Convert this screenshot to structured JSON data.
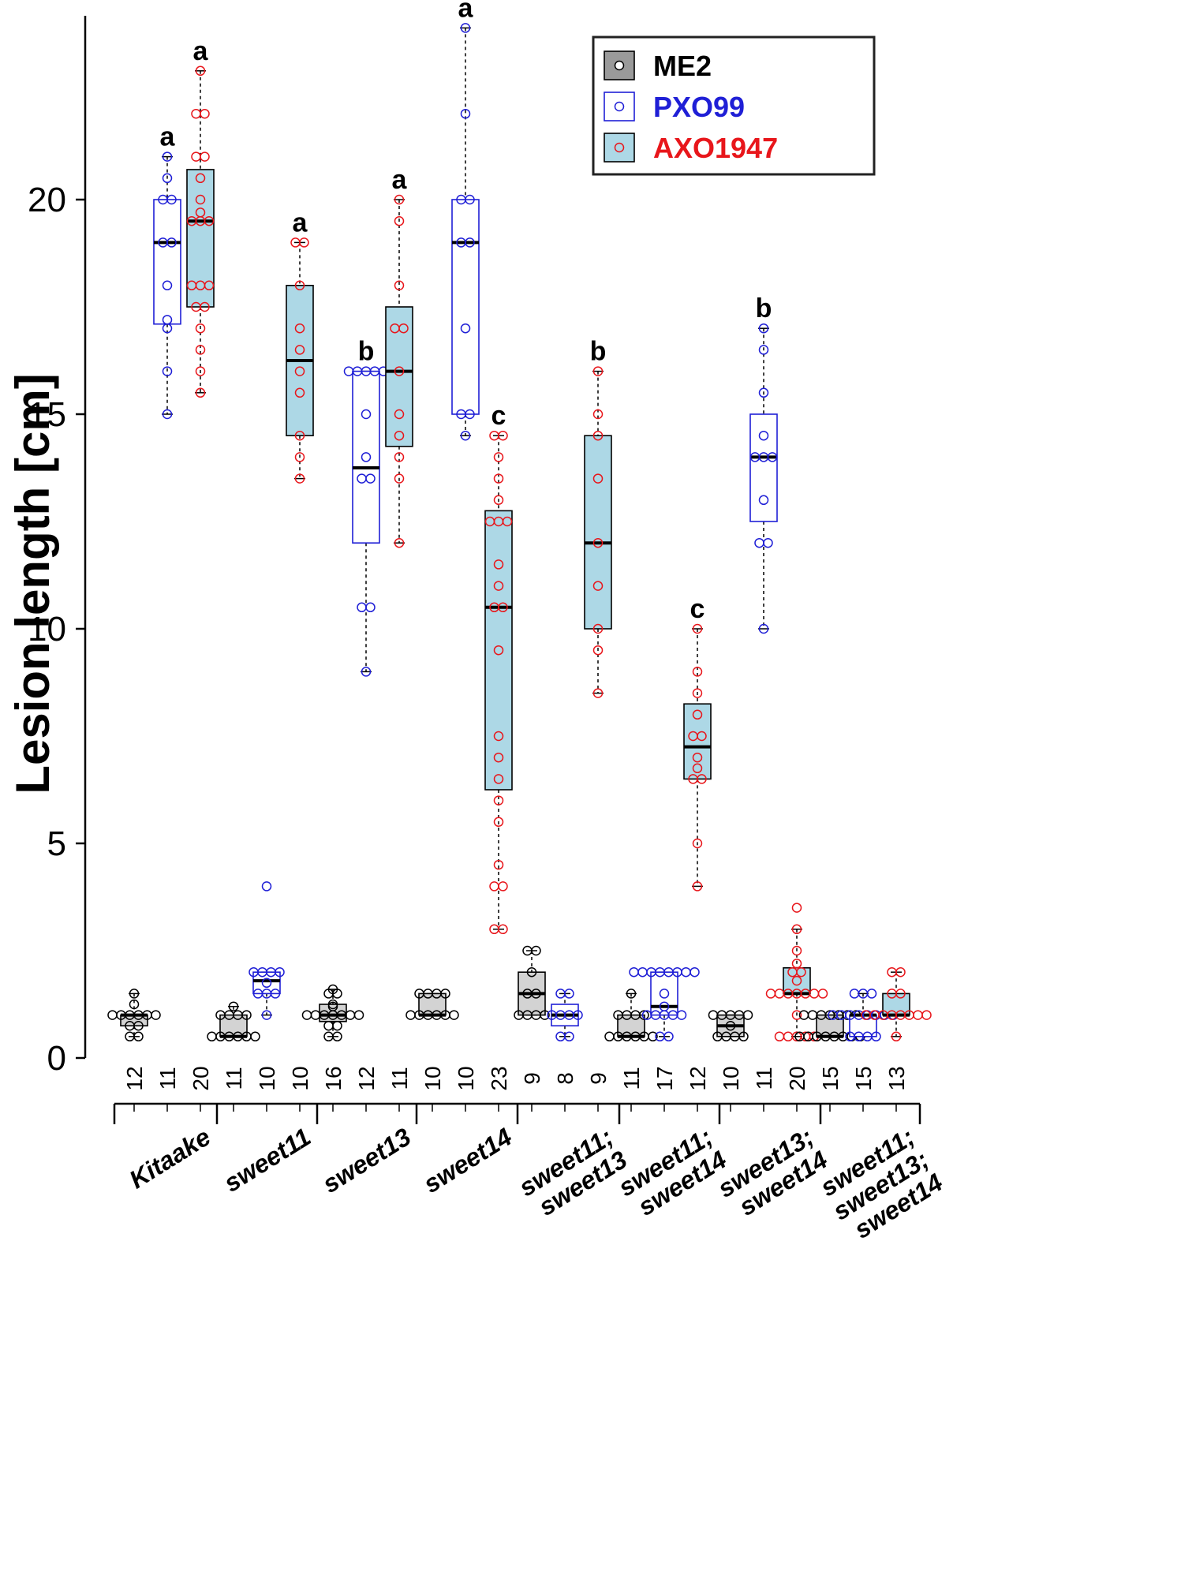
{
  "chart_data": {
    "type": "boxplot",
    "ylabel": "Lesion length [cm]",
    "ylim": [
      0,
      24.5
    ],
    "yticks": [
      0,
      5,
      10,
      15,
      20
    ],
    "legend": {
      "placement": "top-right",
      "entries": [
        {
          "name": "ME2",
          "color": "#000000",
          "fill": "#d3d3d3"
        },
        {
          "name": "PXO99",
          "color": "#1f1fd6",
          "fill": "#ffffff"
        },
        {
          "name": "AXO1947",
          "color": "#e8161b",
          "fill": "#add8e6"
        }
      ]
    },
    "groups": [
      {
        "label": "Kitaake",
        "label_lines": [
          "Kitaake"
        ]
      },
      {
        "label": "sweet11",
        "label_lines": [
          "sweet11"
        ]
      },
      {
        "label": "sweet13",
        "label_lines": [
          "sweet13"
        ]
      },
      {
        "label": "sweet14",
        "label_lines": [
          "sweet14"
        ]
      },
      {
        "label": "sweet11; sweet13",
        "label_lines": [
          "sweet11;",
          "sweet13"
        ]
      },
      {
        "label": "sweet11; sweet14",
        "label_lines": [
          "sweet11;",
          "sweet14"
        ]
      },
      {
        "label": "sweet13; sweet14",
        "label_lines": [
          "sweet13;",
          "sweet14"
        ]
      },
      {
        "label": "sweet11; sweet13; sweet14",
        "label_lines": [
          "sweet11;",
          "sweet13;",
          "sweet14"
        ]
      }
    ],
    "boxes": [
      {
        "group": 0,
        "strain": "ME2",
        "n": "12",
        "q1": 0.75,
        "median": 1.0,
        "q3": 1.0,
        "whisker_low": 0.5,
        "whisker_high": 1.5,
        "points": [
          0.5,
          0.5,
          0.75,
          0.75,
          1,
          1,
          1,
          1,
          1,
          1,
          1.25,
          1.5
        ],
        "letter": ""
      },
      {
        "group": 0,
        "strain": "PXO99",
        "n": "11",
        "q1": 17.1,
        "median": 19.0,
        "q3": 20.0,
        "whisker_low": 15.0,
        "whisker_high": 21.0,
        "points": [
          15,
          16,
          17,
          17.2,
          18,
          19,
          19,
          20,
          20,
          20.5,
          21
        ],
        "letter": "a"
      },
      {
        "group": 0,
        "strain": "AXO1947",
        "n": "20",
        "q1": 17.5,
        "median": 19.5,
        "q3": 20.7,
        "whisker_low": 15.5,
        "whisker_high": 23.0,
        "points": [
          15.5,
          16,
          16.5,
          17,
          17.5,
          17.5,
          18,
          18,
          18,
          19.5,
          19.5,
          19.5,
          19.7,
          20,
          20.5,
          21,
          21,
          22,
          22,
          23
        ],
        "letter": "a"
      },
      {
        "group": 1,
        "strain": "ME2",
        "n": "11",
        "q1": 0.5,
        "median": 0.5,
        "q3": 1.0,
        "whisker_low": 0.5,
        "whisker_high": 1.2,
        "points": [
          0.5,
          0.5,
          0.5,
          0.5,
          0.5,
          0.5,
          1,
          1,
          1,
          1,
          1.2
        ],
        "letter": ""
      },
      {
        "group": 1,
        "strain": "PXO99",
        "n": "10",
        "q1": 1.5,
        "median": 1.8,
        "q3": 2.0,
        "whisker_low": 1.0,
        "whisker_high": 2.0,
        "points": [
          1,
          1.5,
          1.5,
          1.5,
          1.75,
          2,
          2,
          2,
          2,
          4
        ],
        "letter": ""
      },
      {
        "group": 1,
        "strain": "AXO1947",
        "n": "10",
        "q1": 14.5,
        "median": 16.25,
        "q3": 18.0,
        "whisker_low": 13.5,
        "whisker_high": 19.0,
        "points": [
          13.5,
          14,
          14.5,
          15.5,
          16,
          16.5,
          17,
          18,
          19,
          19
        ],
        "letter": "a"
      },
      {
        "group": 2,
        "strain": "ME2",
        "n": "16",
        "q1": 0.85,
        "median": 1.0,
        "q3": 1.25,
        "whisker_low": 0.5,
        "whisker_high": 1.6,
        "points": [
          0.5,
          0.5,
          0.75,
          0.75,
          1,
          1,
          1,
          1,
          1,
          1,
          1,
          1.2,
          1.25,
          1.5,
          1.5,
          1.6
        ],
        "letter": ""
      },
      {
        "group": 2,
        "strain": "PXO99",
        "n": "12",
        "q1": 12.0,
        "median": 13.75,
        "q3": 16.0,
        "whisker_low": 9.0,
        "whisker_high": 16.0,
        "points": [
          9,
          10.5,
          10.5,
          13.5,
          13.5,
          14,
          15,
          16,
          16,
          16,
          16,
          16
        ],
        "letter": "b"
      },
      {
        "group": 2,
        "strain": "AXO1947",
        "n": "11",
        "q1": 14.25,
        "median": 16.0,
        "q3": 17.5,
        "whisker_low": 12.0,
        "whisker_high": 20.0,
        "points": [
          12,
          13.5,
          14,
          14.5,
          15,
          16,
          17,
          17,
          18,
          19.5,
          20
        ],
        "letter": "a"
      },
      {
        "group": 3,
        "strain": "ME2",
        "n": "10",
        "q1": 1.0,
        "median": 1.0,
        "q3": 1.5,
        "whisker_low": 1.0,
        "whisker_high": 1.5,
        "points": [
          1,
          1,
          1,
          1,
          1,
          1,
          1.5,
          1.5,
          1.5,
          1.5
        ],
        "letter": ""
      },
      {
        "group": 3,
        "strain": "PXO99",
        "n": "10",
        "q1": 15.0,
        "median": 19.0,
        "q3": 20.0,
        "whisker_low": 14.5,
        "whisker_high": 24.0,
        "points": [
          14.5,
          15,
          15,
          17,
          19,
          19,
          20,
          20,
          22,
          24
        ],
        "letter": "a"
      },
      {
        "group": 3,
        "strain": "AXO1947",
        "n": "23",
        "q1": 6.25,
        "median": 10.5,
        "q3": 12.75,
        "whisker_low": 3.0,
        "whisker_high": 14.5,
        "points": [
          3,
          3,
          4,
          4,
          4.5,
          5.5,
          6,
          6.5,
          7,
          7.5,
          9.5,
          10.5,
          10.5,
          11,
          11.5,
          12.5,
          12.5,
          12.5,
          13,
          13.5,
          14,
          14.5,
          14.5
        ],
        "letter": "c"
      },
      {
        "group": 4,
        "strain": "ME2",
        "n": "9",
        "q1": 1.0,
        "median": 1.5,
        "q3": 2.0,
        "whisker_low": 1.0,
        "whisker_high": 2.5,
        "points": [
          1,
          1,
          1,
          1,
          1.5,
          1.5,
          2,
          2.5,
          2.5
        ],
        "letter": ""
      },
      {
        "group": 4,
        "strain": "PXO99",
        "n": "8",
        "q1": 0.75,
        "median": 1.0,
        "q3": 1.25,
        "whisker_low": 0.5,
        "whisker_high": 1.5,
        "points": [
          0.5,
          0.5,
          1,
          1,
          1,
          1,
          1.5,
          1.5
        ],
        "letter": ""
      },
      {
        "group": 4,
        "strain": "AXO1947",
        "n": "9",
        "q1": 10.0,
        "median": 12.0,
        "q3": 14.5,
        "whisker_low": 8.5,
        "whisker_high": 16.0,
        "points": [
          8.5,
          9.5,
          10,
          11,
          12,
          13.5,
          14.5,
          15,
          16
        ],
        "letter": "b"
      },
      {
        "group": 5,
        "strain": "ME2",
        "n": "11",
        "q1": 0.5,
        "median": 0.5,
        "q3": 1.0,
        "whisker_low": 0.5,
        "whisker_high": 1.5,
        "points": [
          0.5,
          0.5,
          0.5,
          0.5,
          0.5,
          0.5,
          1,
          1,
          1,
          1,
          1.5
        ],
        "letter": ""
      },
      {
        "group": 5,
        "strain": "PXO99",
        "n": "17",
        "q1": 1.0,
        "median": 1.2,
        "q3": 2.0,
        "whisker_low": 0.5,
        "whisker_high": 2.0,
        "points": [
          0.5,
          0.5,
          1,
          1,
          1,
          1,
          1,
          1.2,
          1.5,
          2,
          2,
          2,
          2,
          2,
          2,
          2,
          2
        ],
        "letter": ""
      },
      {
        "group": 5,
        "strain": "AXO1947",
        "n": "12",
        "q1": 6.5,
        "median": 7.25,
        "q3": 8.25,
        "whisker_low": 4.0,
        "whisker_high": 10.0,
        "points": [
          4,
          5,
          6.5,
          6.5,
          6.75,
          7,
          7.5,
          7.5,
          8,
          8.5,
          9,
          10
        ],
        "letter": "c"
      },
      {
        "group": 6,
        "strain": "ME2",
        "n": "10",
        "q1": 0.5,
        "median": 0.75,
        "q3": 1.0,
        "whisker_low": 0.5,
        "whisker_high": 1.0,
        "points": [
          0.5,
          0.5,
          0.5,
          0.5,
          0.75,
          1,
          1,
          1,
          1,
          1
        ],
        "letter": ""
      },
      {
        "group": 6,
        "strain": "PXO99",
        "n": "11",
        "q1": 12.5,
        "median": 14.0,
        "q3": 15.0,
        "whisker_low": 10.0,
        "whisker_high": 17.0,
        "points": [
          10,
          12,
          12,
          13,
          14,
          14,
          14,
          14.5,
          15.5,
          16.5,
          17
        ],
        "letter": "b"
      },
      {
        "group": 6,
        "strain": "AXO1947",
        "n": "20",
        "q1": 1.5,
        "median": 1.5,
        "q3": 2.1,
        "whisker_low": 0.5,
        "whisker_high": 3.0,
        "points": [
          0.5,
          0.5,
          0.5,
          0.5,
          0.5,
          1,
          1.5,
          1.5,
          1.5,
          1.5,
          1.5,
          1.5,
          1.5,
          1.8,
          2,
          2,
          2.2,
          2.5,
          3,
          3.5
        ],
        "letter": ""
      },
      {
        "group": 7,
        "strain": "ME2",
        "n": "15",
        "q1": 0.5,
        "median": 0.5,
        "q3": 1.0,
        "whisker_low": 0.5,
        "whisker_high": 1.0,
        "points": [
          0.5,
          0.5,
          0.5,
          0.5,
          0.5,
          0.5,
          0.5,
          0.5,
          1,
          1,
          1,
          1,
          1,
          1,
          1
        ],
        "letter": ""
      },
      {
        "group": 7,
        "strain": "PXO99",
        "n": "15",
        "q1": 0.5,
        "median": 1.0,
        "q3": 1.0,
        "whisker_low": 0.5,
        "whisker_high": 1.5,
        "points": [
          0.5,
          0.5,
          0.5,
          0.5,
          1,
          1,
          1,
          1,
          1,
          1,
          1,
          1,
          1.5,
          1.5,
          1.5
        ],
        "letter": ""
      },
      {
        "group": 7,
        "strain": "AXO1947",
        "n": "13",
        "q1": 1.0,
        "median": 1.0,
        "q3": 1.5,
        "whisker_low": 0.5,
        "whisker_high": 2.0,
        "points": [
          0.5,
          1,
          1,
          1,
          1,
          1,
          1,
          1,
          1,
          1.5,
          1.5,
          2,
          2
        ],
        "letter": ""
      }
    ]
  }
}
